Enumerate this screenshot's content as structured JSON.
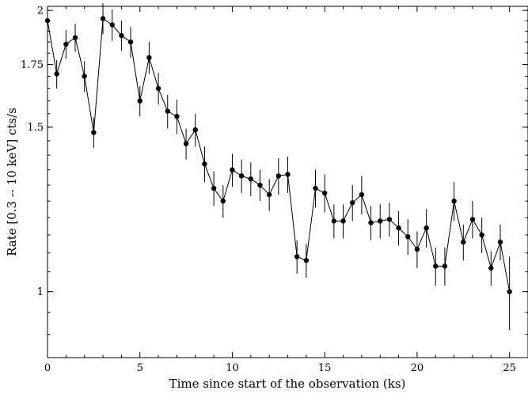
{
  "chart_data": {
    "type": "scatter",
    "xlabel": "Time since start of the observation (ks)",
    "ylabel": "Rate [0.3 -- 10 keV] cts/s",
    "y_scale": "log",
    "xlim": [
      0,
      26
    ],
    "ylim": [
      0.85,
      2.02
    ],
    "x_ticks": [
      0,
      5,
      10,
      15,
      20,
      25
    ],
    "x_tick_labels": [
      "0",
      "5",
      "10",
      "15",
      "20",
      "25"
    ],
    "y_ticks": [
      1,
      1.5,
      1.75,
      2
    ],
    "y_tick_labels": [
      "1",
      "1.5",
      "1.75",
      "2"
    ],
    "grid": false,
    "marker": "filled-circle",
    "line": "connected",
    "color": "#000000",
    "series": [
      {
        "x": [
          0,
          0.5,
          1,
          1.5,
          2,
          2.5,
          3,
          3.5,
          4,
          4.5,
          5,
          5.5,
          6,
          6.5,
          7,
          7.5,
          8,
          8.5,
          9,
          9.5,
          10,
          10.5,
          11,
          11.5,
          12,
          12.5,
          13,
          13.5,
          14,
          14.5,
          15,
          15.5,
          16,
          16.5,
          17,
          17.5,
          18,
          18.5,
          19,
          19.5,
          20,
          20.5,
          21,
          21.5,
          22,
          22.5,
          23,
          23.5,
          24,
          24.5,
          25
        ],
        "y": [
          1.95,
          1.71,
          1.84,
          1.87,
          1.7,
          1.48,
          1.96,
          1.93,
          1.88,
          1.85,
          1.6,
          1.78,
          1.65,
          1.56,
          1.54,
          1.44,
          1.49,
          1.37,
          1.29,
          1.25,
          1.35,
          1.33,
          1.32,
          1.3,
          1.27,
          1.33,
          1.335,
          1.09,
          1.08,
          1.29,
          1.275,
          1.19,
          1.19,
          1.245,
          1.27,
          1.185,
          1.19,
          1.195,
          1.17,
          1.145,
          1.11,
          1.17,
          1.065,
          1.065,
          1.25,
          1.13,
          1.195,
          1.15,
          1.06,
          1.13,
          1.0
        ],
        "err": [
          0.06,
          0.06,
          0.065,
          0.065,
          0.065,
          0.055,
          0.075,
          0.075,
          0.07,
          0.07,
          0.06,
          0.07,
          0.065,
          0.065,
          0.065,
          0.055,
          0.06,
          0.06,
          0.055,
          0.05,
          0.055,
          0.055,
          0.055,
          0.05,
          0.05,
          0.06,
          0.06,
          0.045,
          0.045,
          0.06,
          0.06,
          0.05,
          0.05,
          0.055,
          0.06,
          0.05,
          0.05,
          0.05,
          0.05,
          0.05,
          0.05,
          0.055,
          0.05,
          0.05,
          0.06,
          0.05,
          0.055,
          0.05,
          0.045,
          0.05,
          0.09
        ]
      }
    ]
  }
}
